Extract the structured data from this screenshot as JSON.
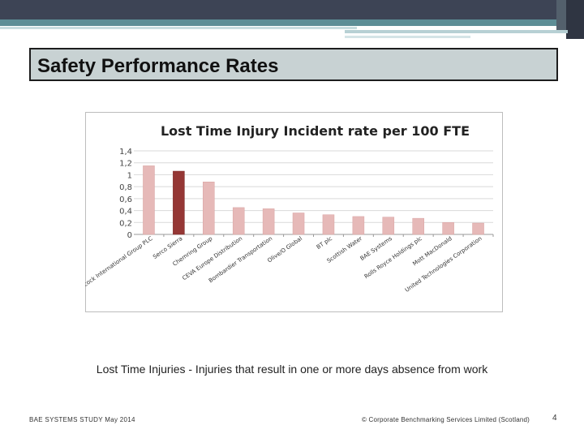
{
  "slide": {
    "title": "Safety Performance Rates",
    "caption": "Lost Time Injuries - Injuries that result in one or more days absence from work",
    "footer_left": "BAE SYSTEMS STUDY May 2014",
    "footer_right": "© Corporate Benchmarking Services Limited (Scotland)",
    "page_number": "4"
  },
  "colors": {
    "default_bar": "#e6b9b8",
    "highlight_bar": "#953735",
    "title_box_fill": "#c8d2d3",
    "header_dark": "#3d4455",
    "header_teal": "#5d8e96"
  },
  "chart_data": {
    "type": "bar",
    "title": "Lost Time Injury Incident rate  per 100 FTE",
    "xlabel": "",
    "ylabel": "",
    "ylim": [
      0,
      1.4
    ],
    "yticks": [
      "0",
      "0,2",
      "0,4",
      "0,6",
      "0,8",
      "1",
      "1,2",
      "1,4"
    ],
    "grid": true,
    "legend": "none",
    "categories": [
      "Babcock International Group PLC",
      "Serco Sierra",
      "Chemring Group",
      "CEVA Europe Distribution",
      "Bombardier Transportation",
      "Olive/O Global",
      "BT plc",
      "Scottish Water",
      "BAE Systems",
      "Rolls Royce Holdings plc",
      "Mott MacDonald",
      "United Technologies Corporation"
    ],
    "values": [
      1.15,
      1.06,
      0.88,
      0.45,
      0.43,
      0.36,
      0.33,
      0.3,
      0.29,
      0.27,
      0.2,
      0.19
    ],
    "highlight_index": 1
  }
}
